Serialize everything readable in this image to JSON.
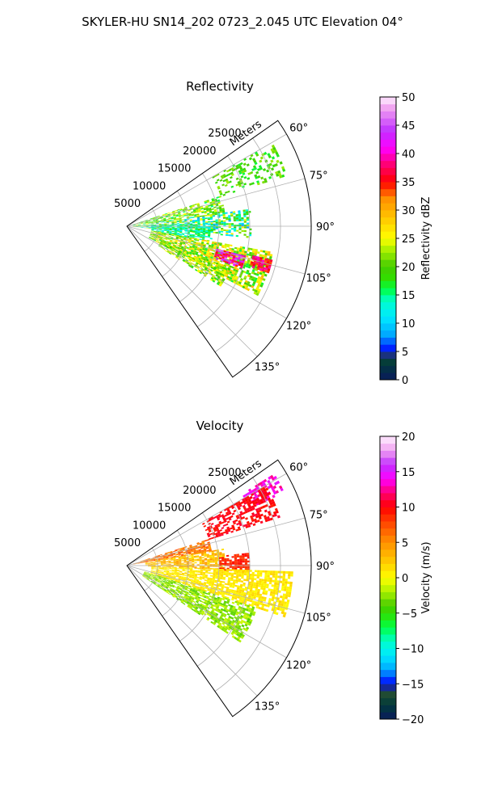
{
  "suptitle": "SKYLER-HU  SN14_202  0723_2.045 UTC Elevation 04°",
  "chart_data": [
    {
      "type": "heatmap",
      "projection": "polar-sector",
      "title": "Reflectivity",
      "radial_label": "Meters",
      "range_ticks": [
        5000,
        10000,
        15000,
        20000,
        25000
      ],
      "range_tick_labels": [
        "5000",
        "10000",
        "15000",
        "20000",
        "25000"
      ],
      "range_max_m": 30000,
      "azimuth_range_deg": [
        55,
        145
      ],
      "azimuth_ticks": [
        60,
        75,
        90,
        105,
        120,
        135
      ],
      "azimuth_tick_labels": [
        "60°",
        "75°",
        "90°",
        "105°",
        "120°",
        "135°"
      ],
      "grid": true,
      "colorbar": {
        "label": "Reflectivity dBZ",
        "vmin": 0,
        "vmax": 50,
        "ticks": [
          0,
          5,
          10,
          15,
          20,
          25,
          30,
          35,
          40,
          45,
          50
        ],
        "tick_labels": [
          "0",
          "5",
          "10",
          "15",
          "20",
          "25",
          "30",
          "35",
          "40",
          "45",
          "50"
        ],
        "colormap_stops": [
          [
            0,
            "#0a1a5c"
          ],
          [
            3,
            "#003a3a"
          ],
          [
            4,
            "#2a5030"
          ],
          [
            5,
            "#0000ff"
          ],
          [
            8,
            "#00a8ff"
          ],
          [
            11,
            "#00e8ff"
          ],
          [
            14,
            "#00ffcc"
          ],
          [
            16,
            "#00ff44"
          ],
          [
            18,
            "#33dd00"
          ],
          [
            20,
            "#44cc00"
          ],
          [
            23,
            "#aaf000"
          ],
          [
            25,
            "#ffff00"
          ],
          [
            28,
            "#ffd000"
          ],
          [
            32,
            "#ff9000"
          ],
          [
            35,
            "#ff0000"
          ],
          [
            38,
            "#ff0070"
          ],
          [
            41,
            "#ff00ff"
          ],
          [
            44,
            "#c030ff"
          ],
          [
            48,
            "#f0a0f0"
          ],
          [
            50,
            "#fff0ff"
          ]
        ]
      },
      "field_features": [
        {
          "az": [
            60,
            72
          ],
          "r": [
            16000,
            27000
          ],
          "val": [
            16,
            23
          ],
          "density": 0.35
        },
        {
          "az": [
            72,
            82
          ],
          "r": [
            1000,
            16000
          ],
          "val": [
            15,
            26
          ],
          "density": 0.65
        },
        {
          "az": [
            82,
            95
          ],
          "r": [
            1000,
            20000
          ],
          "val": [
            8,
            26
          ],
          "density": 0.6
        },
        {
          "az": [
            88,
            100
          ],
          "r": [
            4000,
            14000
          ],
          "val": [
            11,
            18
          ],
          "density": 0.7
        },
        {
          "az": [
            100,
            118
          ],
          "r": [
            4000,
            24000
          ],
          "val": [
            16,
            30
          ],
          "density": 0.75
        },
        {
          "az": [
            104,
            110
          ],
          "r": [
            15000,
            20000
          ],
          "val": [
            34,
            47
          ],
          "density": 0.9
        },
        {
          "az": [
            103,
            108
          ],
          "r": [
            21000,
            24000
          ],
          "val": [
            33,
            40
          ],
          "density": 0.85
        },
        {
          "az": [
            112,
            122
          ],
          "r": [
            6000,
            18000
          ],
          "val": [
            17,
            27
          ],
          "density": 0.6
        }
      ]
    },
    {
      "type": "heatmap",
      "projection": "polar-sector",
      "title": "Velocity",
      "radial_label": "Meters",
      "range_ticks": [
        5000,
        10000,
        15000,
        20000,
        25000
      ],
      "range_tick_labels": [
        "5000",
        "10000",
        "15000",
        "20000",
        "25000"
      ],
      "range_max_m": 30000,
      "azimuth_range_deg": [
        55,
        145
      ],
      "azimuth_ticks": [
        60,
        75,
        90,
        105,
        120,
        135
      ],
      "azimuth_tick_labels": [
        "60°",
        "75°",
        "90°",
        "105°",
        "120°",
        "135°"
      ],
      "grid": true,
      "colorbar": {
        "label": "Velocity (m/s)",
        "vmin": -20,
        "vmax": 20,
        "ticks": [
          -20,
          -15,
          -10,
          -5,
          0,
          5,
          10,
          15,
          20
        ],
        "tick_labels": [
          "−20",
          "−15",
          "−10",
          "−5",
          "0",
          "5",
          "10",
          "15",
          "20"
        ],
        "colormap_stops": [
          [
            -20,
            "#0a1a5c"
          ],
          [
            -18,
            "#003a3a"
          ],
          [
            -16,
            "#2a5030"
          ],
          [
            -15,
            "#0000ff"
          ],
          [
            -13,
            "#00a8ff"
          ],
          [
            -11,
            "#00e8ff"
          ],
          [
            -9,
            "#00ffcc"
          ],
          [
            -7,
            "#00ff44"
          ],
          [
            -5,
            "#33dd00"
          ],
          [
            -4,
            "#44cc00"
          ],
          [
            -2,
            "#aaf000"
          ],
          [
            0,
            "#ffff00"
          ],
          [
            2,
            "#ffd000"
          ],
          [
            5,
            "#ff9000"
          ],
          [
            8,
            "#ff4000"
          ],
          [
            10,
            "#ff0000"
          ],
          [
            12,
            "#ff0070"
          ],
          [
            14,
            "#ff00ff"
          ],
          [
            16,
            "#c030ff"
          ],
          [
            18,
            "#f0a0f0"
          ],
          [
            20,
            "#fff0ff"
          ]
        ]
      },
      "field_features": [
        {
          "az": [
            58,
            65
          ],
          "r": [
            22000,
            28000
          ],
          "val": [
            12,
            15
          ],
          "density": 0.55
        },
        {
          "az": [
            60,
            72
          ],
          "r": [
            14000,
            26000
          ],
          "val": [
            9,
            11
          ],
          "density": 0.55
        },
        {
          "az": [
            72,
            80
          ],
          "r": [
            1000,
            14000
          ],
          "val": [
            4,
            8
          ],
          "density": 0.75
        },
        {
          "az": [
            80,
            92
          ],
          "r": [
            3000,
            16000
          ],
          "val": [
            1,
            5
          ],
          "density": 0.7
        },
        {
          "az": [
            84,
            93
          ],
          "r": [
            15000,
            20000
          ],
          "val": [
            8,
            10
          ],
          "density": 0.75
        },
        {
          "az": [
            92,
            108
          ],
          "r": [
            4000,
            27000
          ],
          "val": [
            0,
            2
          ],
          "density": 0.75
        },
        {
          "az": [
            108,
            124
          ],
          "r": [
            3000,
            22000
          ],
          "val": [
            -4,
            -1
          ],
          "density": 0.75
        }
      ]
    }
  ]
}
